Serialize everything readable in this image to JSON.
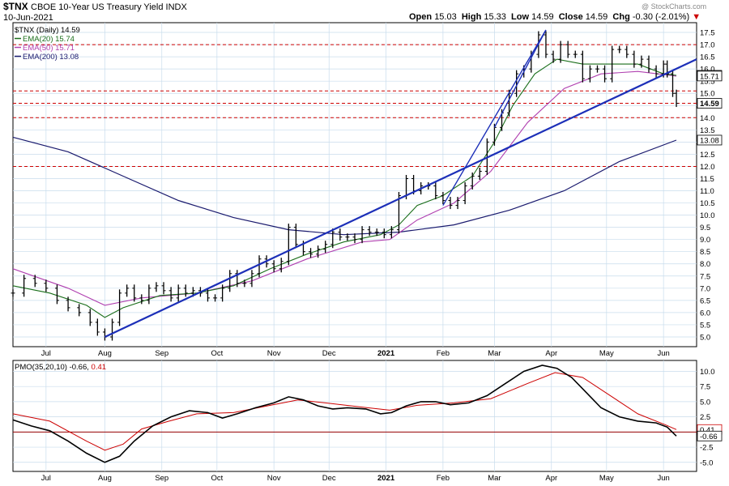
{
  "header": {
    "symbol": "$TNX",
    "name": "CBOE 10-Year US Treasury Yield INDX",
    "date": "10-Jun-2021",
    "watermark": "@ StockCharts.com",
    "open_label": "Open",
    "open": "15.03",
    "high_label": "High",
    "high": "15.33",
    "low_label": "Low",
    "low": "14.59",
    "close_label": "Close",
    "close": "14.59",
    "chg_label": "Chg",
    "chg": "-0.30 (-2.01%)"
  },
  "legend": [
    {
      "text": "$TNX (Daily) 14.59",
      "color": "#000000"
    },
    {
      "text": "EMA(20) 15.74",
      "color": "#1a6e1a"
    },
    {
      "text": "EMA(50) 15.71",
      "color": "#b040b0"
    },
    {
      "text": "EMA(200) 13.08",
      "color": "#1a1a6e"
    }
  ],
  "pmo_legend": {
    "label": "PMO(35,20,10)",
    "v1": "-0.66",
    "v2": "0.41"
  },
  "colors": {
    "price": "#000000",
    "ema20": "#1a6e1a",
    "ema50": "#b040b0",
    "ema200": "#1a1a6e",
    "trend": "#1c2fb8",
    "resistance": "#cc0000",
    "pmo": "#000000",
    "pmo_signal": "#cc0000",
    "grid": "#c8dcec"
  },
  "chart_data": [
    {
      "type": "line",
      "title": "$TNX CBOE 10-Year US Treasury Yield INDX",
      "x_tick_labels": [
        "Jul",
        "Aug",
        "Sep",
        "Oct",
        "Nov",
        "Dec",
        "2021",
        "Feb",
        "Mar",
        "Apr",
        "May",
        "Jun"
      ],
      "x_tick_days": [
        18,
        50,
        81,
        111,
        142,
        172,
        203,
        234,
        262,
        293,
        323,
        354
      ],
      "y_tick_labels": [
        "5.0",
        "5.5",
        "6.0",
        "6.5",
        "7.0",
        "7.5",
        "8.0",
        "8.5",
        "9.0",
        "9.5",
        "10.0",
        "10.5",
        "11.0",
        "11.5",
        "12.0",
        "12.5",
        "13.0",
        "13.5",
        "14.0",
        "14.5",
        "15.0",
        "15.5",
        "16.0",
        "16.5",
        "17.0",
        "17.5"
      ],
      "ylim": [
        4.6,
        17.9
      ],
      "xlim": [
        0,
        372
      ],
      "price_points": [
        [
          0,
          6.8
        ],
        [
          6,
          7.4
        ],
        [
          12,
          7.2
        ],
        [
          18,
          7.0
        ],
        [
          24,
          6.5
        ],
        [
          30,
          6.2
        ],
        [
          36,
          6.0
        ],
        [
          42,
          5.6
        ],
        [
          46,
          5.2
        ],
        [
          50,
          5.0
        ],
        [
          54,
          5.6
        ],
        [
          58,
          6.8
        ],
        [
          62,
          7.0
        ],
        [
          66,
          6.6
        ],
        [
          70,
          6.5
        ],
        [
          74,
          7.0
        ],
        [
          78,
          7.1
        ],
        [
          82,
          6.9
        ],
        [
          86,
          6.6
        ],
        [
          90,
          7.0
        ],
        [
          94,
          6.8
        ],
        [
          98,
          6.9
        ],
        [
          102,
          6.8
        ],
        [
          106,
          6.6
        ],
        [
          110,
          6.6
        ],
        [
          114,
          7.0
        ],
        [
          118,
          7.6
        ],
        [
          122,
          7.2
        ],
        [
          126,
          7.2
        ],
        [
          130,
          7.6
        ],
        [
          134,
          8.2
        ],
        [
          138,
          8.0
        ],
        [
          142,
          7.8
        ],
        [
          146,
          8.1
        ],
        [
          150,
          9.5
        ],
        [
          154,
          8.8
        ],
        [
          158,
          8.5
        ],
        [
          162,
          8.4
        ],
        [
          166,
          8.6
        ],
        [
          170,
          8.8
        ],
        [
          174,
          9.3
        ],
        [
          178,
          9.1
        ],
        [
          182,
          9.1
        ],
        [
          186,
          9.0
        ],
        [
          190,
          9.4
        ],
        [
          194,
          9.3
        ],
        [
          198,
          9.3
        ],
        [
          202,
          9.2
        ],
        [
          206,
          9.4
        ],
        [
          210,
          10.8
        ],
        [
          214,
          11.5
        ],
        [
          218,
          11.0
        ],
        [
          222,
          11.2
        ],
        [
          226,
          11.2
        ],
        [
          230,
          10.8
        ],
        [
          234,
          10.6
        ],
        [
          238,
          10.4
        ],
        [
          242,
          10.6
        ],
        [
          246,
          11.2
        ],
        [
          250,
          11.6
        ],
        [
          254,
          11.8
        ],
        [
          258,
          13.0
        ],
        [
          262,
          13.6
        ],
        [
          266,
          14.2
        ],
        [
          270,
          15.0
        ],
        [
          274,
          15.8
        ],
        [
          278,
          16.0
        ],
        [
          282,
          16.6
        ],
        [
          286,
          17.4
        ],
        [
          290,
          16.6
        ],
        [
          294,
          16.4
        ],
        [
          298,
          17.0
        ],
        [
          302,
          16.6
        ],
        [
          306,
          16.6
        ],
        [
          310,
          15.6
        ],
        [
          314,
          16.0
        ],
        [
          318,
          16.0
        ],
        [
          322,
          15.6
        ],
        [
          326,
          16.8
        ],
        [
          330,
          16.8
        ],
        [
          334,
          16.6
        ],
        [
          338,
          16.2
        ],
        [
          342,
          16.4
        ],
        [
          346,
          16.0
        ],
        [
          350,
          15.8
        ],
        [
          354,
          16.2
        ],
        [
          356,
          15.8
        ],
        [
          359,
          15.0
        ],
        [
          361,
          14.59
        ]
      ],
      "ema20_points": [
        [
          0,
          7.1
        ],
        [
          20,
          6.8
        ],
        [
          40,
          6.3
        ],
        [
          50,
          5.8
        ],
        [
          60,
          6.2
        ],
        [
          80,
          6.7
        ],
        [
          100,
          6.8
        ],
        [
          120,
          7.1
        ],
        [
          140,
          7.8
        ],
        [
          160,
          8.4
        ],
        [
          180,
          8.9
        ],
        [
          200,
          9.2
        ],
        [
          210,
          9.6
        ],
        [
          220,
          10.4
        ],
        [
          234,
          10.8
        ],
        [
          250,
          11.6
        ],
        [
          262,
          13.0
        ],
        [
          272,
          14.5
        ],
        [
          284,
          15.8
        ],
        [
          296,
          16.4
        ],
        [
          310,
          16.2
        ],
        [
          326,
          16.2
        ],
        [
          340,
          16.2
        ],
        [
          354,
          15.8
        ],
        [
          361,
          15.74
        ]
      ],
      "ema50_points": [
        [
          0,
          7.8
        ],
        [
          30,
          7.0
        ],
        [
          50,
          6.3
        ],
        [
          70,
          6.6
        ],
        [
          100,
          6.8
        ],
        [
          130,
          7.3
        ],
        [
          160,
          8.2
        ],
        [
          190,
          8.9
        ],
        [
          205,
          9.0
        ],
        [
          220,
          9.8
        ],
        [
          240,
          10.5
        ],
        [
          260,
          11.8
        ],
        [
          280,
          13.8
        ],
        [
          300,
          15.2
        ],
        [
          320,
          15.8
        ],
        [
          340,
          15.9
        ],
        [
          361,
          15.71
        ]
      ],
      "ema200_points": [
        [
          0,
          13.2
        ],
        [
          30,
          12.6
        ],
        [
          60,
          11.6
        ],
        [
          90,
          10.6
        ],
        [
          120,
          9.9
        ],
        [
          150,
          9.4
        ],
        [
          180,
          9.2
        ],
        [
          210,
          9.3
        ],
        [
          240,
          9.6
        ],
        [
          270,
          10.2
        ],
        [
          300,
          11.0
        ],
        [
          330,
          12.2
        ],
        [
          361,
          13.08
        ]
      ],
      "trendlines": [
        [
          [
            50,
            5.0
          ],
          [
            372,
            16.4
          ]
        ],
        [
          [
            234,
            10.4
          ],
          [
            290,
            17.6
          ]
        ],
        [
          [
            262,
            13.6
          ],
          [
            290,
            17.6
          ]
        ]
      ],
      "resistance_levels": [
        17.0,
        14.59,
        12.0,
        14.0,
        15.1
      ],
      "value_tags": [
        {
          "value": 15.74,
          "text": "15.74"
        },
        {
          "value": 15.71,
          "text": "15.71"
        },
        {
          "value": 14.59,
          "text": "14.59"
        },
        {
          "value": 13.08,
          "text": "13.08"
        }
      ]
    },
    {
      "type": "line",
      "title": "PMO(35,20,10)",
      "x_tick_labels": [
        "Jul",
        "Aug",
        "Sep",
        "Oct",
        "Nov",
        "Dec",
        "2021",
        "Feb",
        "Mar",
        "Apr",
        "May",
        "Jun"
      ],
      "y_tick_labels": [
        "-5.0",
        "-2.5",
        "0.0",
        "2.5",
        "5.0",
        "7.5",
        "10.0"
      ],
      "ylim": [
        -6.5,
        11.8
      ],
      "xlim": [
        0,
        372
      ],
      "pmo_points": [
        [
          0,
          2.0
        ],
        [
          10,
          1.0
        ],
        [
          20,
          0.2
        ],
        [
          30,
          -1.5
        ],
        [
          40,
          -3.5
        ],
        [
          50,
          -5.0
        ],
        [
          58,
          -4.0
        ],
        [
          66,
          -1.5
        ],
        [
          76,
          1.0
        ],
        [
          86,
          2.5
        ],
        [
          96,
          3.5
        ],
        [
          106,
          3.2
        ],
        [
          114,
          2.3
        ],
        [
          122,
          3.0
        ],
        [
          132,
          4.0
        ],
        [
          142,
          4.8
        ],
        [
          150,
          5.8
        ],
        [
          158,
          5.3
        ],
        [
          166,
          4.3
        ],
        [
          174,
          3.8
        ],
        [
          182,
          4.0
        ],
        [
          192,
          3.8
        ],
        [
          200,
          3.0
        ],
        [
          206,
          3.2
        ],
        [
          214,
          4.3
        ],
        [
          222,
          5.0
        ],
        [
          230,
          5.0
        ],
        [
          238,
          4.5
        ],
        [
          248,
          4.8
        ],
        [
          258,
          6.0
        ],
        [
          268,
          8.0
        ],
        [
          278,
          10.0
        ],
        [
          288,
          11.0
        ],
        [
          296,
          10.5
        ],
        [
          304,
          9.0
        ],
        [
          312,
          6.5
        ],
        [
          320,
          4.0
        ],
        [
          330,
          2.5
        ],
        [
          340,
          1.8
        ],
        [
          350,
          1.5
        ],
        [
          356,
          0.8
        ],
        [
          361,
          -0.66
        ]
      ],
      "signal_points": [
        [
          0,
          3.0
        ],
        [
          20,
          1.8
        ],
        [
          40,
          -1.5
        ],
        [
          50,
          -3.0
        ],
        [
          60,
          -2.0
        ],
        [
          70,
          0.5
        ],
        [
          85,
          1.8
        ],
        [
          100,
          3.0
        ],
        [
          120,
          3.2
        ],
        [
          140,
          4.4
        ],
        [
          155,
          5.3
        ],
        [
          170,
          4.8
        ],
        [
          190,
          4.1
        ],
        [
          205,
          3.6
        ],
        [
          220,
          4.4
        ],
        [
          240,
          4.8
        ],
        [
          260,
          5.5
        ],
        [
          280,
          8.0
        ],
        [
          295,
          9.8
        ],
        [
          310,
          9.0
        ],
        [
          325,
          6.0
        ],
        [
          340,
          3.0
        ],
        [
          355,
          1.2
        ],
        [
          361,
          0.41
        ]
      ],
      "zero_line": 0,
      "value_tags": [
        {
          "value": 0.41,
          "text": "0.41"
        },
        {
          "value": -0.66,
          "text": "-0.66"
        }
      ]
    }
  ]
}
